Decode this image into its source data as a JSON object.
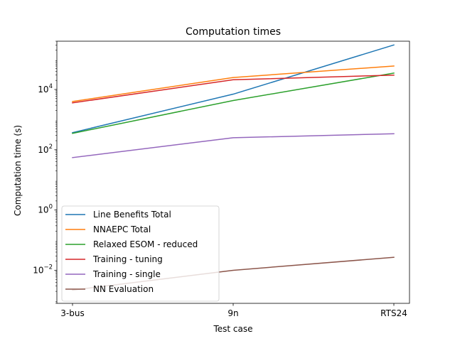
{
  "chart_data": {
    "type": "line",
    "title": "Computation times",
    "xlabel": "Test case",
    "ylabel": "Computation time (s)",
    "yscale": "log",
    "ylim": [
      0.0008,
      400000
    ],
    "categories": [
      "3-bus",
      "9n",
      "RTS24"
    ],
    "y_ticks": [
      {
        "value": 0.01,
        "base": "10",
        "exp": "−2"
      },
      {
        "value": 1,
        "base": "10",
        "exp": "0"
      },
      {
        "value": 100,
        "base": "10",
        "exp": "2"
      },
      {
        "value": 10000,
        "base": "10",
        "exp": "4"
      }
    ],
    "legend_position": "lower left",
    "grid": false,
    "series": [
      {
        "name": "Line Benefits Total",
        "color": "#1f77b4",
        "values": [
          370,
          7000,
          300000
        ]
      },
      {
        "name": "NNAEPC Total",
        "color": "#ff7f0e",
        "values": [
          4000,
          25000,
          60000
        ]
      },
      {
        "name": "Relaxed ESOM - reduced",
        "color": "#2ca02c",
        "values": [
          350,
          4300,
          35000
        ]
      },
      {
        "name": "Training - tuning",
        "color": "#d62728",
        "values": [
          3600,
          21000,
          30000
        ]
      },
      {
        "name": "Training - single",
        "color": "#9467bd",
        "values": [
          55,
          250,
          340
        ]
      },
      {
        "name": "NN Evaluation",
        "color": "#8c564b",
        "values": [
          0.0022,
          0.01,
          0.027
        ]
      }
    ]
  }
}
